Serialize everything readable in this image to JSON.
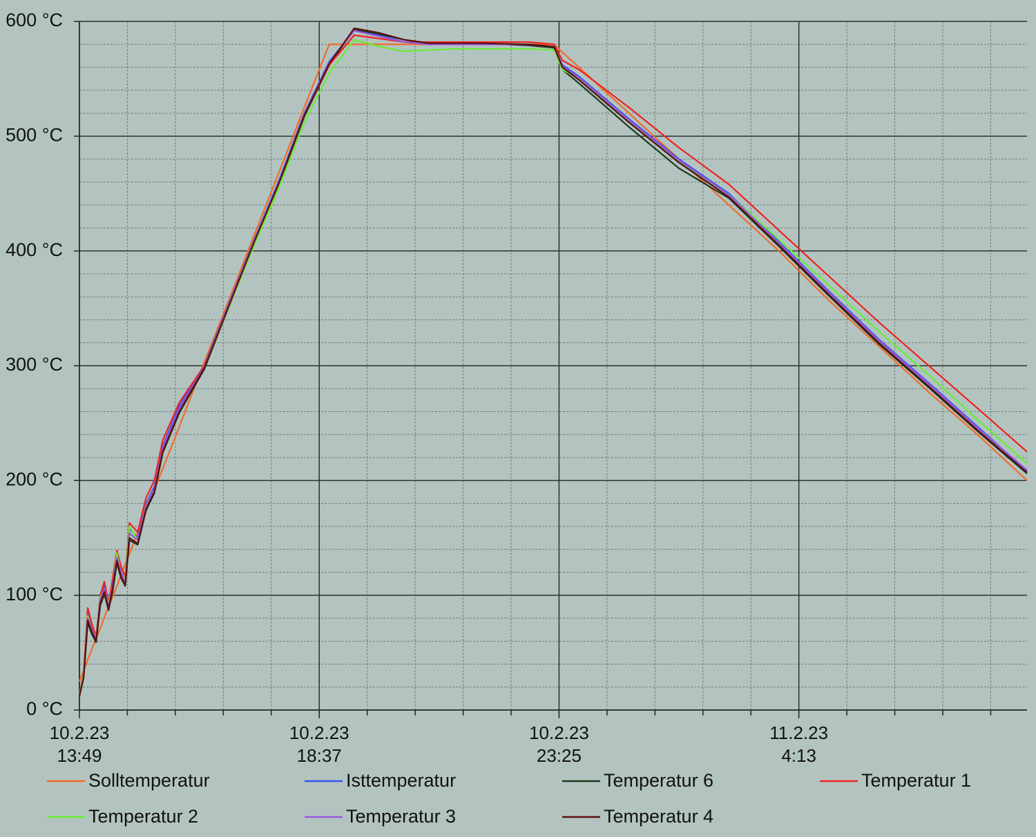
{
  "chart_data": {
    "type": "line",
    "x": [
      "2023-02-10T13:49",
      "2023-02-10T13:54",
      "2023-02-10T13:59",
      "2023-02-10T14:04",
      "2023-02-10T14:09",
      "2023-02-10T14:14",
      "2023-02-10T14:19",
      "2023-02-10T14:24",
      "2023-02-10T14:29",
      "2023-02-10T14:34",
      "2023-02-10T14:39",
      "2023-02-10T14:44",
      "2023-02-10T14:49",
      "2023-02-10T14:59",
      "2023-02-10T15:09",
      "2023-02-10T15:19",
      "2023-02-10T15:29",
      "2023-02-10T15:49",
      "2023-02-10T16:19",
      "2023-02-10T16:49",
      "2023-02-10T17:19",
      "2023-02-10T17:49",
      "2023-02-10T18:19",
      "2023-02-10T18:49",
      "2023-02-10T19:19",
      "2023-02-10T19:49",
      "2023-02-10T20:19",
      "2023-02-10T20:49",
      "2023-02-10T21:19",
      "2023-02-10T21:49",
      "2023-02-10T22:49",
      "2023-02-10T23:19",
      "2023-02-10T23:29",
      "2023-02-10T23:49",
      "2023-02-11T00:49",
      "2023-02-11T01:49",
      "2023-02-11T02:49",
      "2023-02-11T03:49",
      "2023-02-11T04:49",
      "2023-02-11T05:49",
      "2023-02-11T06:49",
      "2023-02-11T07:49",
      "2023-02-11T08:47"
    ],
    "series": [
      {
        "name": "Solltemperatur",
        "color": "#f26a2a",
        "values": [
          25,
          34,
          44,
          53,
          62,
          71,
          81,
          90,
          99,
          108,
          118,
          127,
          136,
          155,
          173,
          192,
          210,
          247,
          303,
          358,
          414,
          469,
          525,
          580,
          580,
          580,
          580,
          580,
          580,
          580,
          580,
          580,
          573,
          560,
          520,
          480,
          440,
          400,
          357,
          317,
          277,
          239,
          200
        ]
      },
      {
        "name": "Isttemperatur",
        "color": "#3355ee",
        "values": [
          12,
          30,
          85,
          72,
          62,
          95,
          108,
          90,
          110,
          135,
          120,
          112,
          158,
          150,
          180,
          195,
          230,
          265,
          300,
          355,
          410,
          462,
          520,
          565,
          592,
          588,
          582,
          580,
          580,
          580,
          580,
          578,
          562,
          552,
          515,
          480,
          450,
          408,
          365,
          323,
          285,
          246,
          208
        ]
      },
      {
        "name": "Temperatur 6",
        "color": "#1a3a1a",
        "values": [
          12,
          28,
          76,
          66,
          59,
          91,
          101,
          87,
          104,
          128,
          115,
          108,
          148,
          144,
          174,
          189,
          224,
          259,
          297,
          352,
          407,
          459,
          517,
          562,
          593,
          589,
          584,
          581,
          581,
          581,
          579,
          577,
          558,
          546,
          508,
          472,
          446,
          404,
          361,
          319,
          281,
          242,
          206
        ]
      },
      {
        "name": "Temperatur 1",
        "color": "#ee2222",
        "values": [
          13,
          33,
          89,
          75,
          64,
          100,
          112,
          93,
          115,
          139,
          125,
          116,
          163,
          155,
          185,
          200,
          235,
          268,
          300,
          352,
          408,
          460,
          518,
          562,
          588,
          585,
          582,
          582,
          582,
          582,
          582,
          580,
          566,
          558,
          525,
          490,
          458,
          418,
          378,
          338,
          300,
          262,
          225
        ]
      },
      {
        "name": "Temperatur 2",
        "color": "#66ee33",
        "values": [
          13,
          31,
          82,
          70,
          63,
          98,
          105,
          92,
          108,
          137,
          118,
          113,
          160,
          148,
          178,
          193,
          228,
          262,
          298,
          352,
          405,
          456,
          512,
          555,
          584,
          578,
          574,
          575,
          576,
          576,
          576,
          575,
          558,
          550,
          512,
          478,
          449,
          410,
          370,
          330,
          292,
          252,
          215
        ]
      },
      {
        "name": "Temperatur 3",
        "color": "#9955dd",
        "values": [
          12,
          29,
          80,
          70,
          62,
          96,
          106,
          90,
          109,
          133,
          119,
          111,
          154,
          148,
          177,
          193,
          228,
          263,
          299,
          354,
          409,
          461,
          519,
          564,
          592,
          587,
          582,
          580,
          580,
          580,
          580,
          578,
          561,
          551,
          514,
          479,
          449,
          407,
          364,
          322,
          284,
          245,
          209
        ]
      },
      {
        "name": "Temperatur 4",
        "color": "#5a1010",
        "values": [
          12,
          28,
          78,
          68,
          60,
          93,
          103,
          88,
          106,
          130,
          116,
          109,
          150,
          145,
          175,
          190,
          225,
          260,
          298,
          353,
          408,
          460,
          518,
          563,
          594,
          590,
          584,
          581,
          581,
          581,
          580,
          578,
          560,
          549,
          512,
          477,
          447,
          405,
          362,
          320,
          282,
          243,
          207
        ]
      }
    ],
    "xlim": [
      "2023-02-10T13:49",
      "2023-02-11T08:47"
    ],
    "xticks": [
      {
        "value": "2023-02-10T13:49",
        "label": "10.2.23\n13:49"
      },
      {
        "value": "2023-02-10T18:37",
        "label": "10.2.23\n18:37"
      },
      {
        "value": "2023-02-10T23:25",
        "label": "10.2.23\n23:25"
      },
      {
        "value": "2023-02-11T04:13",
        "label": "11.2.23\n4:13"
      }
    ],
    "ylim": [
      0,
      600
    ],
    "yticks": [
      {
        "value": 0,
        "label": "0 °C"
      },
      {
        "value": 100,
        "label": "100 °C"
      },
      {
        "value": 200,
        "label": "200 °C"
      },
      {
        "value": 300,
        "label": "300 °C"
      },
      {
        "value": 400,
        "label": "400 °C"
      },
      {
        "value": 500,
        "label": "500 °C"
      },
      {
        "value": 600,
        "label": "600 °C"
      }
    ],
    "grid": true,
    "minor_grid_divisions": 5,
    "legend": "bottom"
  }
}
